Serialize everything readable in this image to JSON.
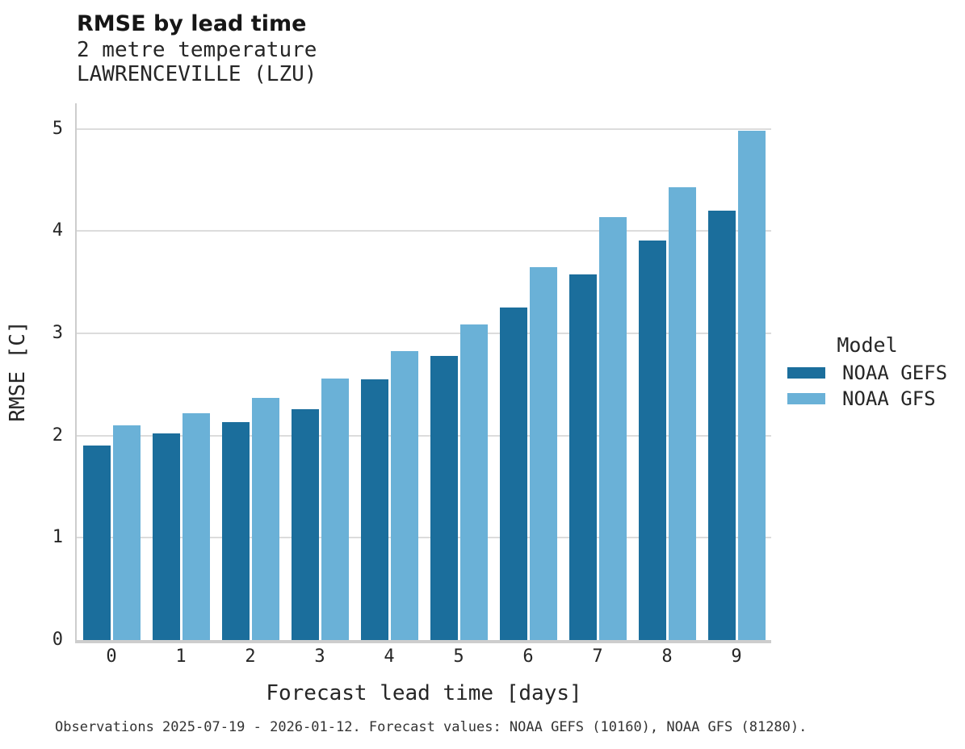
{
  "header": {
    "title": "RMSE by lead time",
    "subtitle_line1": "2 metre temperature",
    "subtitle_line2": "LAWRENCEVILLE (LZU)"
  },
  "legend": {
    "title": "Model"
  },
  "caption": "Observations 2025-07-19 - 2026-01-12. Forecast values: NOAA GEFS (10160), NOAA GFS (81280).",
  "chart_data": {
    "type": "bar",
    "title": "RMSE by lead time",
    "subtitle": [
      "2 metre temperature",
      "LAWRENCEVILLE (LZU)"
    ],
    "xlabel": "Forecast lead time [days]",
    "ylabel": "RMSE [C]",
    "categories": [
      "0",
      "1",
      "2",
      "3",
      "4",
      "5",
      "6",
      "7",
      "8",
      "9"
    ],
    "series": [
      {
        "name": "NOAA GEFS",
        "color": "#1b6e9c",
        "values": [
          1.9,
          2.02,
          2.13,
          2.26,
          2.55,
          2.78,
          3.25,
          3.58,
          3.91,
          4.2
        ]
      },
      {
        "name": "NOAA GFS",
        "color": "#6ab1d7",
        "values": [
          2.1,
          2.22,
          2.37,
          2.56,
          2.83,
          3.09,
          3.65,
          4.14,
          4.43,
          4.98
        ]
      }
    ],
    "ylim": [
      0,
      5.25
    ],
    "yticks": [
      0,
      1,
      2,
      3,
      4,
      5
    ],
    "grid": true,
    "legend_title": "Model",
    "legend_position": "right"
  }
}
